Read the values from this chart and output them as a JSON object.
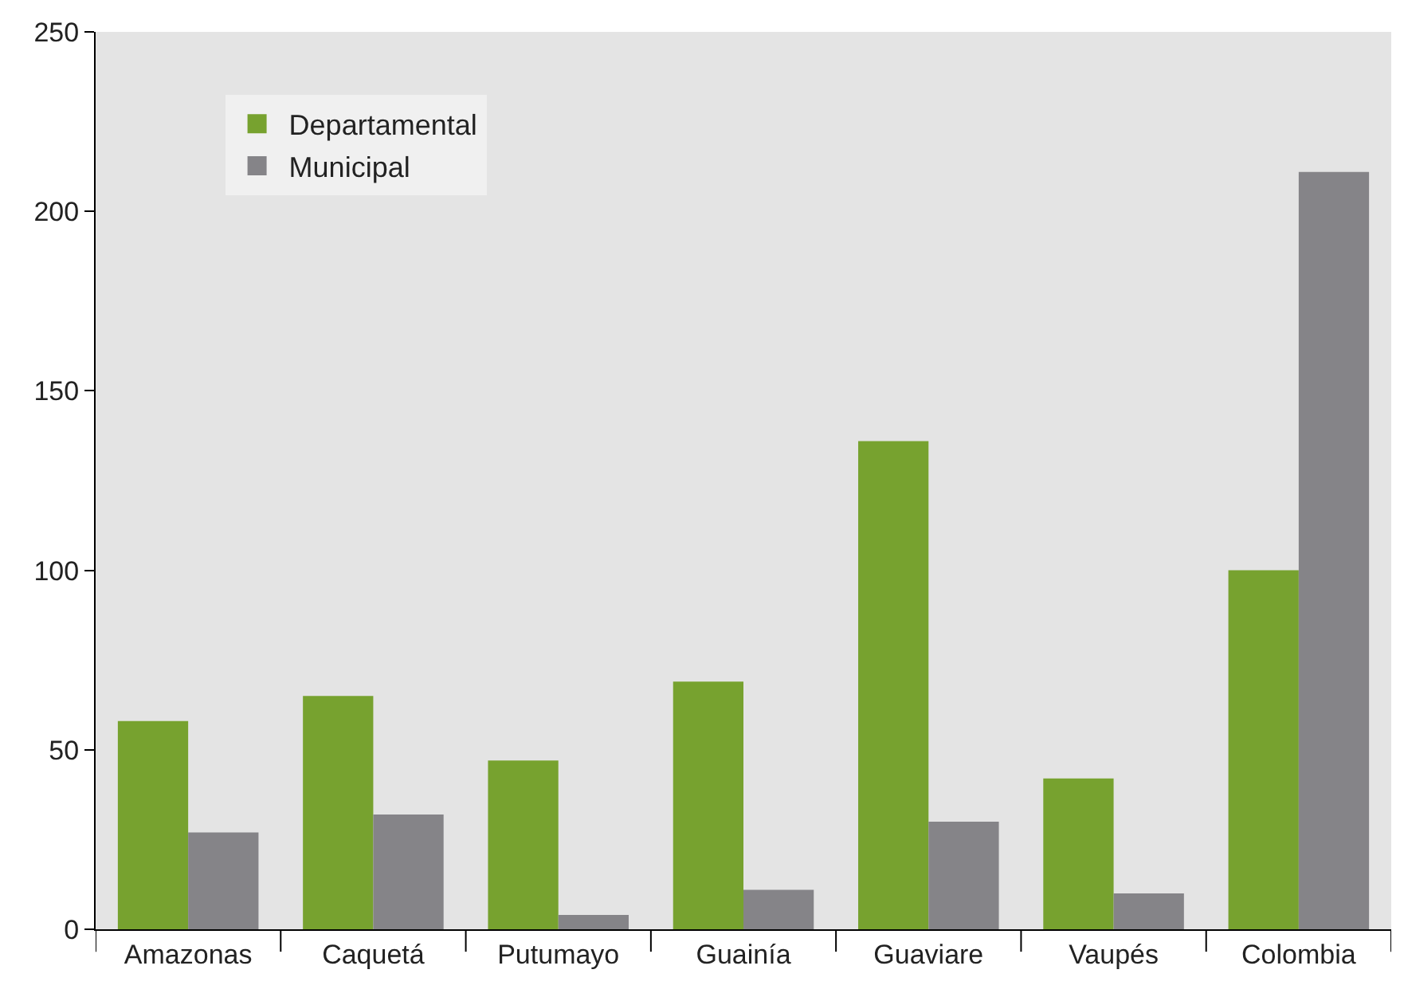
{
  "chart_data": {
    "type": "bar",
    "categories": [
      "Amazonas",
      "Caquetá",
      "Putumayo",
      "Guainía",
      "Guaviare",
      "Vaupés",
      "Colombia"
    ],
    "series": [
      {
        "name": "Departamental",
        "color": "#77a22f",
        "values": [
          58,
          65,
          47,
          69,
          136,
          42,
          100
        ]
      },
      {
        "name": "Municipal",
        "color": "#858488",
        "values": [
          27,
          32,
          4,
          11,
          30,
          10,
          211
        ]
      }
    ],
    "ylim": [
      0,
      250
    ],
    "yticks": [
      0,
      50,
      100,
      150,
      200,
      250
    ],
    "grid": false,
    "legend": "top left"
  }
}
